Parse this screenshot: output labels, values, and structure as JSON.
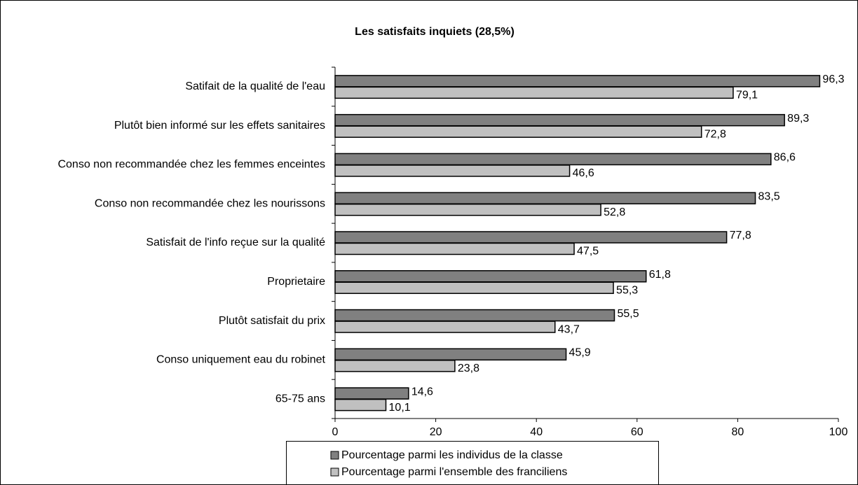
{
  "chart_data": {
    "type": "barh",
    "title": "Les satisfaits inquiets (28,5%)",
    "categories": [
      "Satifait de la qualité de l'eau",
      "Plutôt bien informé sur les effets sanitaires",
      "Conso non recommandée chez les femmes enceintes",
      "Conso non recommandée chez les nourissons",
      "Satisfait de l'info reçue sur la qualité",
      "Proprietaire",
      "Plutôt satisfait du prix",
      "Conso uniquement eau du robinet",
      "65-75 ans"
    ],
    "series": [
      {
        "name": "Pourcentage parmi les individus de la classe",
        "color": "#808080",
        "values": [
          96.3,
          89.3,
          86.6,
          83.5,
          77.8,
          61.8,
          55.5,
          45.9,
          14.6
        ],
        "value_labels": [
          "96,3",
          "89,3",
          "86,6",
          "83,5",
          "77,8",
          "61,8",
          "55,5",
          "45,9",
          "14,6"
        ]
      },
      {
        "name": "Pourcentage parmi l'ensemble des franciliens",
        "color": "#c0c0c0",
        "values": [
          79.1,
          72.8,
          46.6,
          52.8,
          47.5,
          55.3,
          43.7,
          23.8,
          10.1
        ],
        "value_labels": [
          "79,1",
          "72,8",
          "46,6",
          "52,8",
          "47,5",
          "55,3",
          "43,7",
          "23,8",
          "10,1"
        ]
      }
    ],
    "xlim": [
      0,
      100
    ],
    "xticks": [
      0,
      20,
      40,
      60,
      80,
      100
    ],
    "legend": "bottom"
  }
}
